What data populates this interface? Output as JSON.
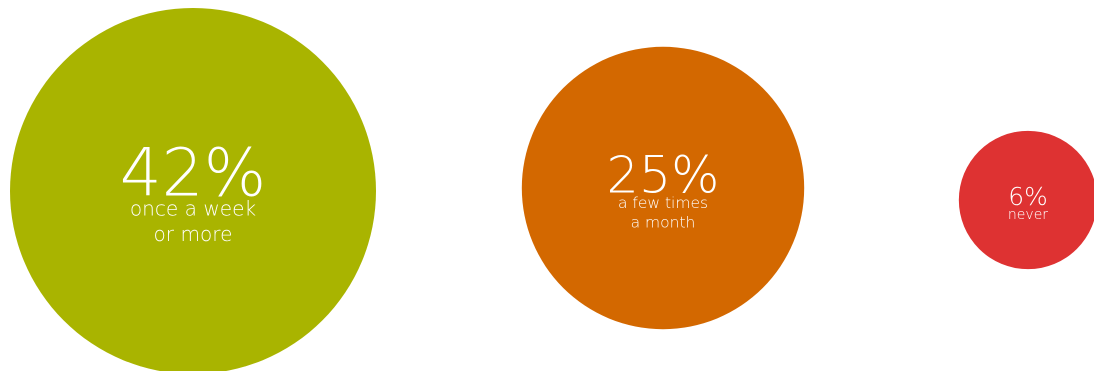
{
  "chart_data": {
    "type": "bubble",
    "items": [
      {
        "value": 42,
        "label": "42%",
        "description": [
          "once a week",
          "or more"
        ],
        "color": "#a9b400"
      },
      {
        "value": 25,
        "label": "25%",
        "description": [
          "a few times",
          "a month"
        ],
        "color": "#d36800"
      },
      {
        "value": 6,
        "label": "6%",
        "description": [
          "never"
        ],
        "color": "#de3232"
      }
    ]
  }
}
